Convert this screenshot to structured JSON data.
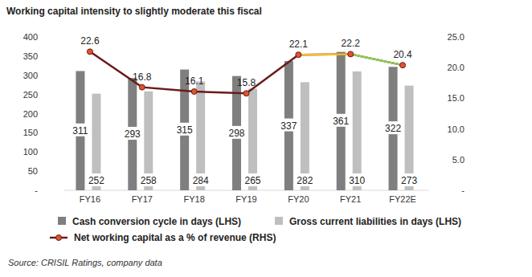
{
  "chart_data": {
    "type": "bar",
    "title": "Working capital intensity to slightly moderate this fiscal",
    "source": "Source: CRISIL Ratings, company data",
    "categories": [
      "FY16",
      "FY17",
      "FY18",
      "FY19",
      "FY20",
      "FY21",
      "FY22E"
    ],
    "series": [
      {
        "name": "Cash conversion cycle in days (LHS)",
        "type": "bar",
        "color": "#7f7f7f",
        "values": [
          311,
          293,
          315,
          298,
          337,
          361,
          322
        ]
      },
      {
        "name": "Gross current liabilities in days (LHS)",
        "type": "bar",
        "color": "#bfbfbf",
        "values": [
          252,
          258,
          284,
          265,
          282,
          310,
          273
        ]
      },
      {
        "name": "Net working capital as a % of revenue (RHS)",
        "type": "line",
        "axis": "y2",
        "color": "#6b1a1a",
        "marker": "circle",
        "values": [
          22.6,
          16.8,
          16.1,
          15.8,
          22.1,
          22.2,
          20.4
        ]
      }
    ],
    "ylim": [
      0,
      400
    ],
    "yticks": [
      {
        "value": 0,
        "label": "-"
      },
      50,
      100,
      150,
      200,
      250,
      300,
      350,
      400
    ],
    "y2lim": [
      0,
      25
    ],
    "y2ticks": [
      {
        "value": 0,
        "label": "-"
      },
      {
        "value": 5,
        "label": "5.0"
      },
      {
        "value": 10,
        "label": "10.0"
      },
      {
        "value": 15,
        "label": "15.0"
      },
      {
        "value": 20,
        "label": "20.0"
      },
      {
        "value": 25,
        "label": "25.0"
      }
    ],
    "data_labels": true,
    "grid": false,
    "legend": "bottom"
  }
}
